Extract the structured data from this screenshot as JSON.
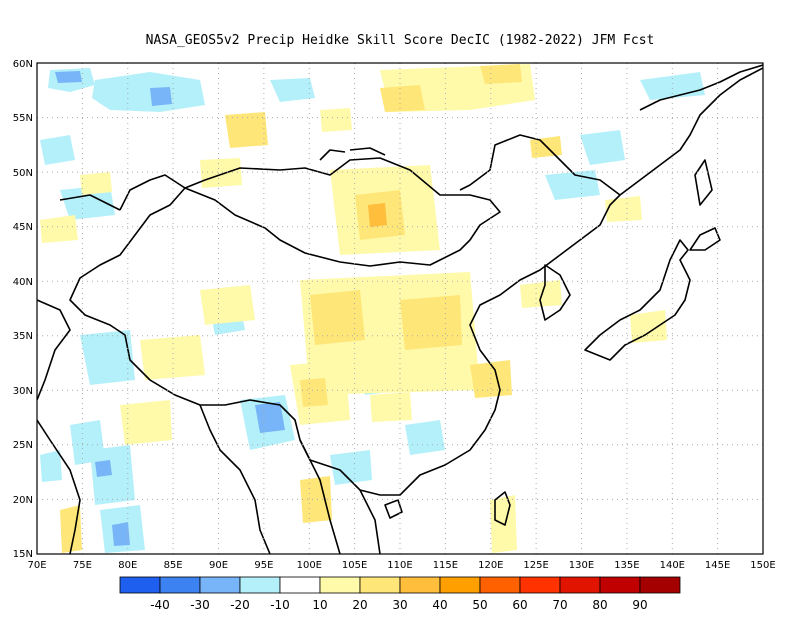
{
  "title": "NASA_GEOS5v2 Precip Heidke Skill Score DecIC (1982-2022) JFM Fcst",
  "map": {
    "lon_range": [
      70,
      150
    ],
    "lat_range": [
      15,
      60
    ],
    "lon_ticks": [
      "70E",
      "75E",
      "80E",
      "85E",
      "90E",
      "95E",
      "100E",
      "105E",
      "110E",
      "115E",
      "120E",
      "125E",
      "130E",
      "135E",
      "140E",
      "145E",
      "150E"
    ],
    "lat_ticks": [
      "15N",
      "20N",
      "25N",
      "30N",
      "35N",
      "40N",
      "45N",
      "50N",
      "55N",
      "60N"
    ],
    "grid": "dotted",
    "grid_color": "#aaaaaa",
    "coastline_color": "#000000",
    "background_color": "#ffffff"
  },
  "colorbar": {
    "colors": [
      "#1f5ff0",
      "#3c82f0",
      "#78b4f8",
      "#b4f0fa",
      "#ffffff",
      "#fffaaa",
      "#ffe678",
      "#ffbe3c",
      "#ffa000",
      "#ff6000",
      "#ff3200",
      "#e11400",
      "#c00000",
      "#a50000"
    ],
    "labels": [
      "-40",
      "-30",
      "-20",
      "-10",
      "10",
      "20",
      "30",
      "40",
      "50",
      "60",
      "70",
      "80",
      "90"
    ]
  }
}
